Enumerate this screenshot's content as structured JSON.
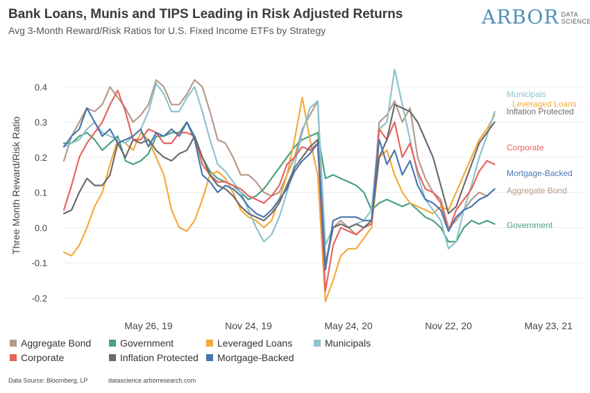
{
  "title": "Bank Loans, Munis and TIPS Leading in Risk Adjusted Returns",
  "subtitle": "Avg 3-Month Reward/Risk Ratios for U.S. Fixed Income ETFs by Strategy",
  "logo": {
    "main": "ARBOR",
    "sub1": "DATA",
    "sub2": "SCIENCE"
  },
  "footer": {
    "source": "Data Source: Bloomberg, LP",
    "website": "datascience.arborresearch.com"
  },
  "chart_data": {
    "type": "line",
    "ylabel": "Three Month Reward/Risk Ratio",
    "ylim": [
      -0.22,
      0.46
    ],
    "yticks": [
      -0.2,
      -0.1,
      0.0,
      0.1,
      0.2,
      0.3,
      0.4
    ],
    "ytick_labels": [
      "-0.2",
      "-0.1",
      "0.0",
      "0.1",
      "0.2",
      "0.3",
      "0.4"
    ],
    "xlim": [
      0,
      135
    ],
    "xticks": [
      {
        "x": 22,
        "label": "May 26, 19"
      },
      {
        "x": 48,
        "label": "Nov 24, 19"
      },
      {
        "x": 74,
        "label": "May 24, 20"
      },
      {
        "x": 100,
        "label": "Nov 22, 20"
      },
      {
        "x": 126,
        "label": "May 23, 21"
      }
    ],
    "x": [
      0,
      2,
      4,
      6,
      8,
      10,
      12,
      14,
      16,
      18,
      20,
      22,
      24,
      26,
      28,
      30,
      32,
      34,
      36,
      38,
      40,
      42,
      44,
      46,
      48,
      50,
      52,
      54,
      56,
      58,
      60,
      62,
      64,
      66,
      68,
      70,
      72,
      74,
      76,
      78,
      80,
      82,
      84,
      86,
      88,
      90,
      92,
      94,
      96,
      98,
      100,
      102,
      104,
      106,
      108,
      110,
      112
    ],
    "grid": true,
    "series": [
      {
        "name": "Aggregate Bond",
        "color": "#b49a8a",
        "end_label": "Aggregate Bond",
        "values": [
          0.19,
          0.26,
          0.3,
          0.34,
          0.33,
          0.35,
          0.4,
          0.37,
          0.34,
          0.3,
          0.32,
          0.35,
          0.42,
          0.4,
          0.35,
          0.35,
          0.38,
          0.42,
          0.4,
          0.33,
          0.25,
          0.24,
          0.2,
          0.15,
          0.15,
          0.13,
          0.1,
          0.09,
          0.1,
          0.15,
          0.2,
          0.28,
          0.32,
          0.36,
          -0.1,
          0.0,
          0.02,
          0.0,
          -0.02,
          0.0,
          0.02,
          0.3,
          0.32,
          0.36,
          0.3,
          0.34,
          0.2,
          0.14,
          0.1,
          0.08,
          0.0,
          0.02,
          0.05,
          0.08,
          0.1,
          0.09,
          0.11
        ]
      },
      {
        "name": "Government",
        "color": "#4aa07e",
        "end_label": "Government",
        "values": [
          0.24,
          0.24,
          0.26,
          0.27,
          0.25,
          0.22,
          0.24,
          0.26,
          0.19,
          0.18,
          0.19,
          0.21,
          0.26,
          0.26,
          0.27,
          0.27,
          0.3,
          0.26,
          0.2,
          0.16,
          0.14,
          0.13,
          0.12,
          0.1,
          0.08,
          0.09,
          0.11,
          0.14,
          0.17,
          0.2,
          0.23,
          0.25,
          0.26,
          0.27,
          0.14,
          0.15,
          0.14,
          0.13,
          0.12,
          0.1,
          0.05,
          0.07,
          0.08,
          0.07,
          0.06,
          0.07,
          0.05,
          0.03,
          0.02,
          0.0,
          -0.04,
          -0.04,
          0.0,
          0.02,
          0.01,
          0.02,
          0.01
        ]
      },
      {
        "name": "Leveraged Loans",
        "color": "#f4a93a",
        "end_label": "Leveraged Loans",
        "values": [
          -0.07,
          -0.08,
          -0.05,
          0.0,
          0.06,
          0.1,
          0.18,
          0.25,
          0.24,
          0.22,
          0.27,
          0.25,
          0.2,
          0.15,
          0.05,
          0.0,
          -0.01,
          0.02,
          0.08,
          0.15,
          0.16,
          0.14,
          0.1,
          0.05,
          0.03,
          0.02,
          0.0,
          0.02,
          0.08,
          0.15,
          0.25,
          0.37,
          0.25,
          0.15,
          -0.21,
          -0.15,
          -0.08,
          -0.06,
          -0.06,
          -0.03,
          0.0,
          0.2,
          0.22,
          0.15,
          0.1,
          0.07,
          0.06,
          0.05,
          0.04,
          0.06,
          0.05,
          0.1,
          0.15,
          0.2,
          0.25,
          0.28,
          0.32
        ]
      },
      {
        "name": "Municipals",
        "color": "#8cc3cc",
        "end_label": "Municipals",
        "values": [
          0.23,
          0.24,
          0.25,
          0.28,
          0.3,
          0.27,
          0.26,
          0.25,
          0.24,
          0.26,
          0.28,
          0.33,
          0.41,
          0.38,
          0.33,
          0.33,
          0.37,
          0.4,
          0.33,
          0.25,
          0.18,
          0.16,
          0.13,
          0.1,
          0.05,
          0.0,
          -0.04,
          -0.02,
          0.03,
          0.1,
          0.18,
          0.27,
          0.34,
          0.36,
          -0.05,
          0.0,
          0.01,
          0.0,
          0.01,
          0.02,
          0.05,
          0.28,
          0.3,
          0.45,
          0.35,
          0.25,
          0.15,
          0.08,
          0.05,
          0.02,
          -0.06,
          -0.04,
          0.05,
          0.12,
          0.2,
          0.26,
          0.33
        ]
      },
      {
        "name": "Corporate",
        "color": "#e8635f",
        "end_label": "Corporate",
        "values": [
          0.05,
          0.12,
          0.2,
          0.24,
          0.27,
          0.3,
          0.35,
          0.39,
          0.33,
          0.25,
          0.25,
          0.28,
          0.27,
          0.24,
          0.24,
          0.27,
          0.27,
          0.26,
          0.18,
          0.15,
          0.13,
          0.13,
          0.12,
          0.11,
          0.09,
          0.08,
          0.07,
          0.09,
          0.12,
          0.18,
          0.2,
          0.23,
          0.22,
          0.24,
          -0.18,
          -0.05,
          0.0,
          -0.01,
          -0.02,
          0.0,
          0.01,
          0.28,
          0.25,
          0.3,
          0.2,
          0.24,
          0.16,
          0.11,
          0.1,
          0.07,
          -0.01,
          0.05,
          0.08,
          0.11,
          0.16,
          0.19,
          0.18
        ]
      },
      {
        "name": "Inflation Protected",
        "color": "#6b6b6b",
        "end_label": "Inflation Protected",
        "values": [
          0.04,
          0.05,
          0.1,
          0.14,
          0.12,
          0.12,
          0.15,
          0.24,
          0.2,
          0.25,
          0.24,
          0.25,
          0.22,
          0.2,
          0.19,
          0.21,
          0.22,
          0.26,
          0.2,
          0.15,
          0.12,
          0.11,
          0.09,
          0.06,
          0.04,
          0.03,
          0.02,
          0.04,
          0.07,
          0.12,
          0.17,
          0.2,
          0.23,
          0.25,
          -0.11,
          0.0,
          0.01,
          0.0,
          0.01,
          0.0,
          0.02,
          0.2,
          0.25,
          0.35,
          0.34,
          0.33,
          0.3,
          0.25,
          0.2,
          0.12,
          0.04,
          0.06,
          0.12,
          0.18,
          0.24,
          0.27,
          0.3
        ]
      },
      {
        "name": "Mortgage-Backed",
        "color": "#4a76ae",
        "end_label": "Mortgage-Backed",
        "values": [
          0.23,
          0.26,
          0.28,
          0.34,
          0.3,
          0.26,
          0.28,
          0.24,
          0.25,
          0.26,
          0.28,
          0.23,
          0.27,
          0.26,
          0.28,
          0.26,
          0.3,
          0.25,
          0.15,
          0.13,
          0.1,
          0.12,
          0.11,
          0.09,
          0.06,
          0.04,
          0.03,
          0.05,
          0.08,
          0.11,
          0.16,
          0.19,
          0.21,
          0.24,
          -0.12,
          0.02,
          0.03,
          0.03,
          0.03,
          0.02,
          0.02,
          0.25,
          0.18,
          0.22,
          0.15,
          0.19,
          0.12,
          0.08,
          0.07,
          0.05,
          -0.01,
          0.03,
          0.05,
          0.06,
          0.08,
          0.09,
          0.11
        ]
      }
    ],
    "legend": {
      "position": "bottom-left"
    }
  },
  "end_labels": [
    {
      "label": "Municipals",
      "color": "#8cc3cc"
    },
    {
      "label": "Leveraged Loans",
      "color": "#f4a93a"
    },
    {
      "label": "Inflation Protected",
      "color": "#6b6b6b"
    },
    {
      "label": "Corporate",
      "color": "#e8635f"
    },
    {
      "label": "Mortgage-Backed",
      "color": "#4a76ae"
    },
    {
      "label": "Aggregate Bond",
      "color": "#b49a8a"
    },
    {
      "label": "Government",
      "color": "#4aa07e"
    }
  ],
  "legend": [
    {
      "label": "Aggregate Bond",
      "color": "#b49a8a"
    },
    {
      "label": "Government",
      "color": "#4aa07e"
    },
    {
      "label": "Leveraged Loans",
      "color": "#f4a93a"
    },
    {
      "label": "Municipals",
      "color": "#8cc3cc"
    },
    {
      "label": "Corporate",
      "color": "#e8635f"
    },
    {
      "label": "Inflation Protected",
      "color": "#6b6b6b"
    },
    {
      "label": "Mortgage-Backed",
      "color": "#4a76ae"
    }
  ]
}
